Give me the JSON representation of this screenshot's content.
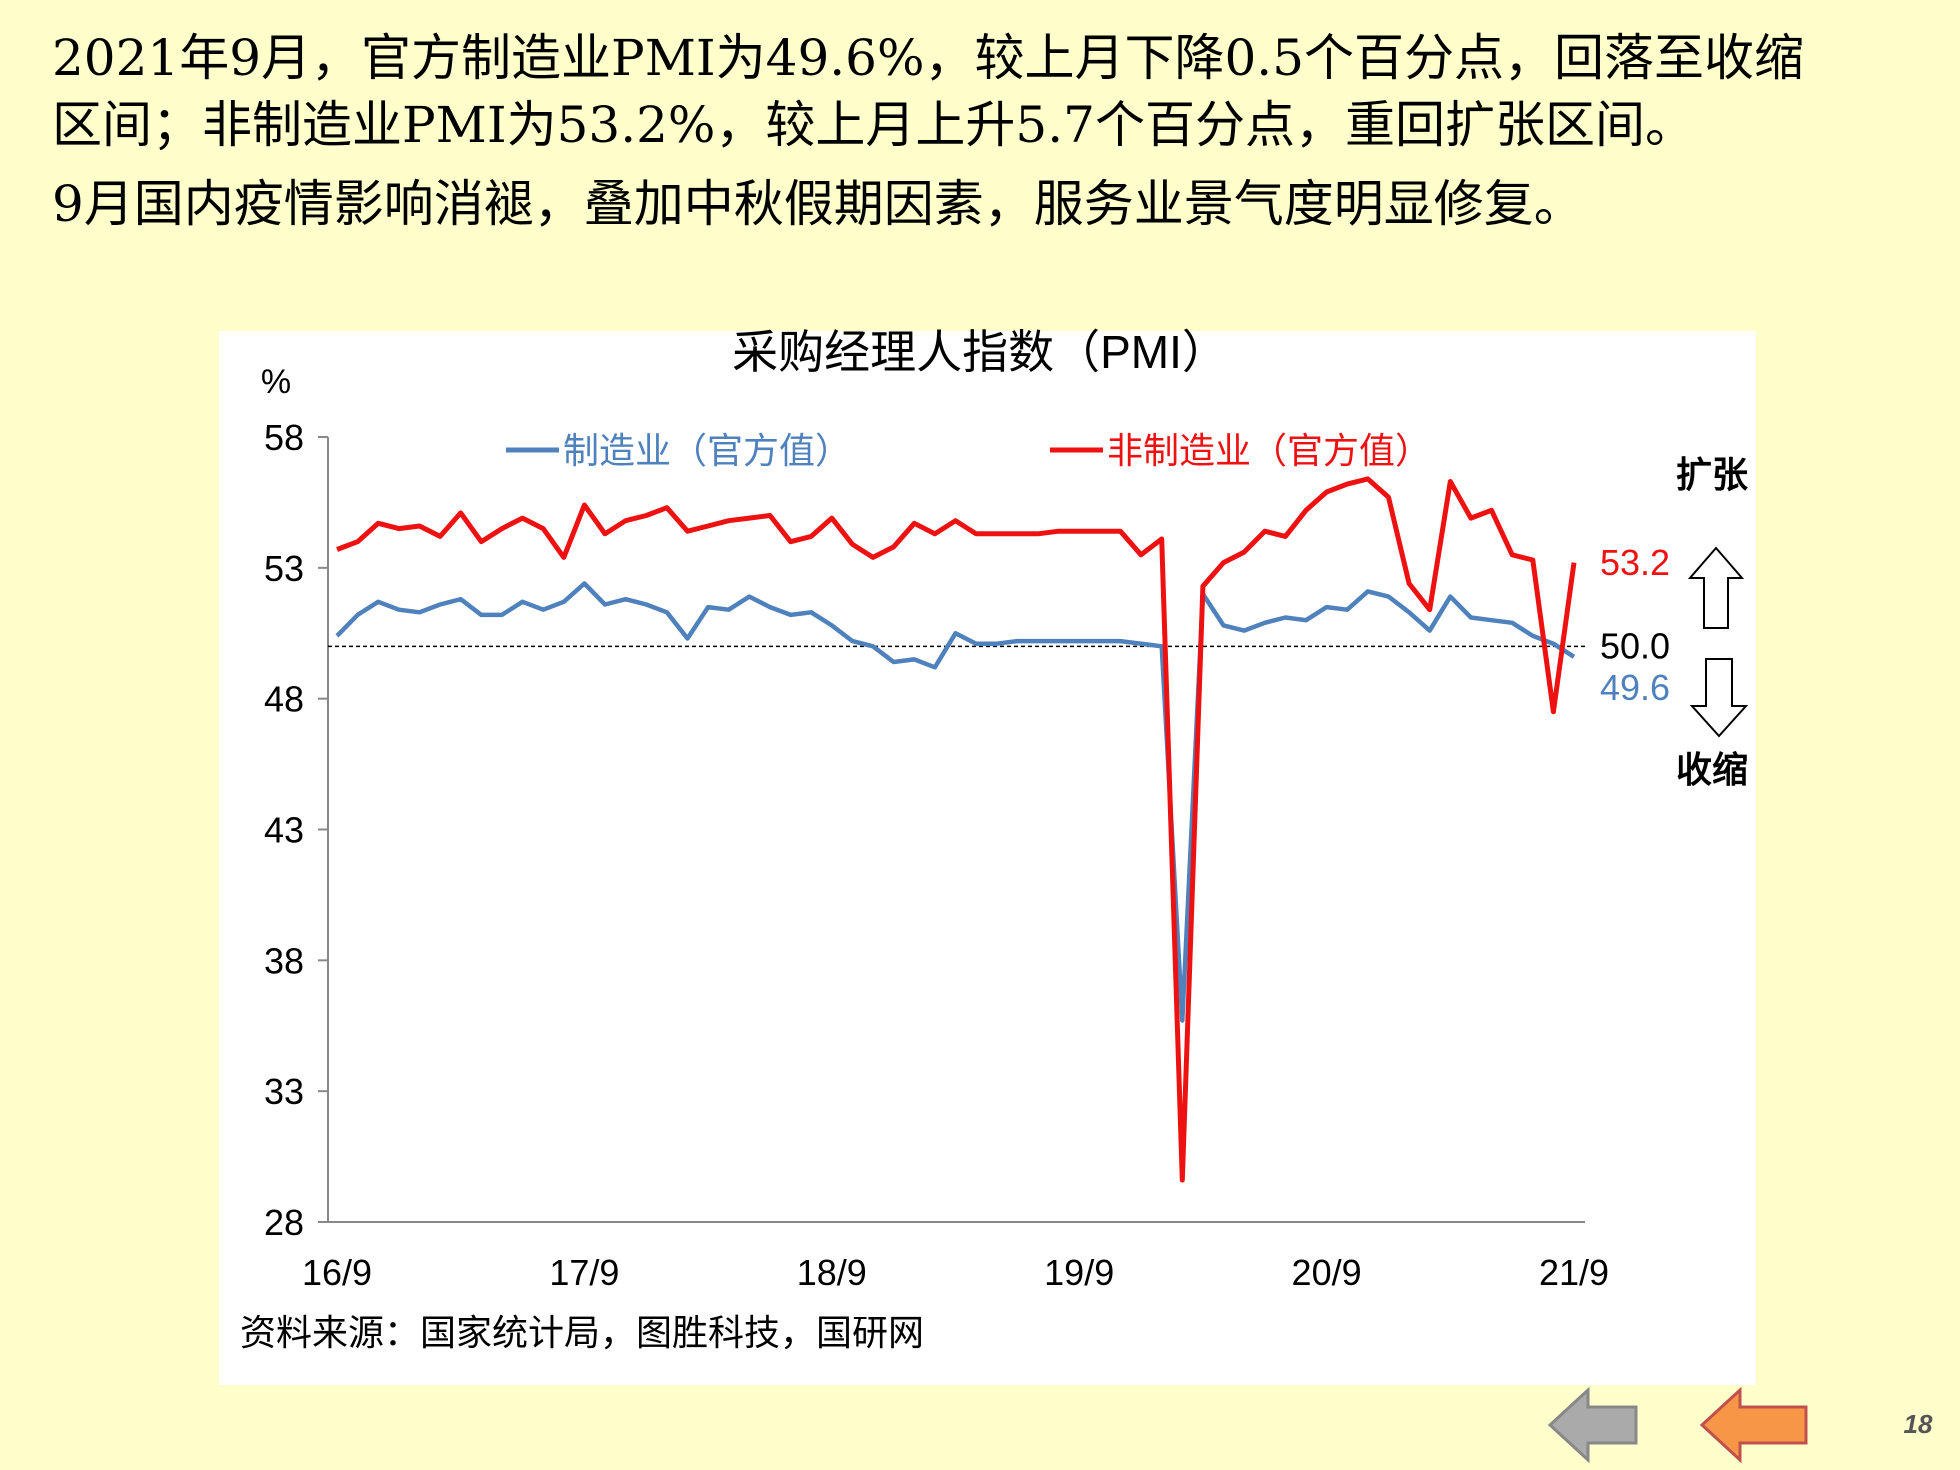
{
  "header": {
    "lines": [
      "2021年9月，官方制造业PMI为49.6%，较上月下降0.5个百分点，回落至收缩",
      "区间；非制造业PMI为53.2%，较上月上升5.7个百分点，重回扩张区间。",
      "9月国内疫情影响消褪，叠加中秋假期因素，服务业景气度明显修复。"
    ]
  },
  "chart_data": {
    "type": "line",
    "title": "采购经理人指数（PMI）",
    "y_label": "%",
    "categories": [
      "16/9",
      null,
      null,
      null,
      null,
      null,
      null,
      null,
      null,
      null,
      null,
      null,
      "17/9",
      null,
      null,
      null,
      null,
      null,
      null,
      null,
      null,
      null,
      null,
      null,
      "18/9",
      null,
      null,
      null,
      null,
      null,
      null,
      null,
      null,
      null,
      null,
      null,
      "19/9",
      null,
      null,
      null,
      null,
      null,
      null,
      null,
      null,
      null,
      null,
      null,
      "20/9",
      null,
      null,
      null,
      null,
      null,
      null,
      null,
      null,
      null,
      null,
      null,
      "21/9"
    ],
    "series": [
      {
        "name": "制造业（官方值）",
        "color": "#4f81bd",
        "last_label": "49.6",
        "values": [
          50.4,
          51.2,
          51.7,
          51.4,
          51.3,
          51.6,
          51.8,
          51.2,
          51.2,
          51.7,
          51.4,
          51.7,
          52.4,
          51.6,
          51.8,
          51.6,
          51.3,
          50.3,
          51.5,
          51.4,
          51.9,
          51.5,
          51.2,
          51.3,
          50.8,
          50.2,
          50.0,
          49.4,
          49.5,
          49.2,
          50.5,
          50.1,
          50.1,
          50.2,
          50.2,
          50.2,
          50.2,
          50.2,
          50.2,
          50.1,
          50.0,
          35.7,
          52.0,
          50.8,
          50.6,
          50.9,
          51.1,
          51.0,
          51.5,
          51.4,
          52.1,
          51.9,
          51.3,
          50.6,
          51.9,
          51.1,
          51.0,
          50.9,
          50.4,
          50.1,
          49.6
        ]
      },
      {
        "name": "非制造业（官方值）",
        "color": "#ee1111",
        "last_label": "53.2",
        "values": [
          53.7,
          54.0,
          54.7,
          54.5,
          54.6,
          54.2,
          55.1,
          54.0,
          54.5,
          54.9,
          54.5,
          53.4,
          55.4,
          54.3,
          54.8,
          55.0,
          55.3,
          54.4,
          54.6,
          54.8,
          54.9,
          55.0,
          54.0,
          54.2,
          54.9,
          53.9,
          53.4,
          53.8,
          54.7,
          54.3,
          54.8,
          54.3,
          54.3,
          54.3,
          54.3,
          54.4,
          54.4,
          54.4,
          54.4,
          53.5,
          54.1,
          29.6,
          52.3,
          53.2,
          53.6,
          54.4,
          54.2,
          55.2,
          55.9,
          56.2,
          56.4,
          55.7,
          52.4,
          51.4,
          56.3,
          54.9,
          55.2,
          53.5,
          53.3,
          47.5,
          53.2
        ]
      }
    ],
    "ylim": [
      28,
      58
    ],
    "yticks": [
      28,
      33,
      38,
      43,
      48,
      53,
      58
    ],
    "reference_line": {
      "value": 50,
      "label": "50.0"
    },
    "annotations": {
      "up": "扩张",
      "down": "收缩"
    },
    "source": "资料来源：国家统计局，图胜科技，国研网"
  },
  "footer": {
    "page": "18"
  }
}
